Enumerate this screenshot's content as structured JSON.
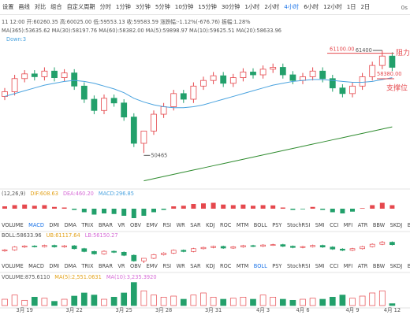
{
  "toolbar": {
    "items": [
      "设置",
      "画线",
      "对比",
      "组合",
      "自定义周期",
      "分时",
      "1分钟",
      "3分钟",
      "5分钟",
      "10分钟",
      "15分钟",
      "30分钟",
      "1小时",
      "2小时",
      "4小时",
      "6小时",
      "12小时",
      "1日",
      "2日"
    ],
    "active": "4小时",
    "right": "0s"
  },
  "info": {
    "ohlc": "11 12:00  开:60260.35  高:60025.00  低:59553.13  收:59583.59  涨跌幅:-1.12%(-676.76)  振幅:1.28%",
    "ma": "MA(365):53635.62  MA(30):58197.76  MA(60):58382.00  MA(5):59898.97  MA(10):59625.51  MA(20):58633.96",
    "down": "Down:3"
  },
  "chart_data": {
    "type": "candlestick",
    "categories": [
      null,
      null,
      "3月 19",
      null,
      null,
      null,
      null,
      "3月 22",
      null,
      null,
      null,
      null,
      "3月 25",
      null,
      null,
      null,
      "3月 28",
      null,
      null,
      null,
      null,
      "3月 31",
      null,
      null,
      null,
      null,
      "4月 3",
      null,
      null,
      null,
      "4月 6",
      null,
      null,
      null,
      null,
      "4月 9",
      null,
      null,
      null,
      "4月 12"
    ],
    "open": [
      56500,
      57000,
      58400,
      58900,
      58600,
      59200,
      58500,
      59000,
      57600,
      56200,
      55000,
      56300,
      55800,
      54300,
      51500,
      52800,
      54600,
      55400,
      56800,
      56200,
      57600,
      58200,
      58700,
      57900,
      58500,
      59100,
      58800,
      59400,
      59600,
      58800,
      58200,
      58600,
      59200,
      58400,
      57400,
      56800,
      57600,
      58600,
      59800,
      60800
    ],
    "high": [
      57400,
      58800,
      59300,
      59300,
      59600,
      59600,
      59400,
      59400,
      58000,
      56600,
      56700,
      56700,
      56200,
      54700,
      52800,
      55000,
      55800,
      57200,
      57200,
      58000,
      58600,
      59100,
      59100,
      58900,
      59500,
      59500,
      59800,
      60000,
      60000,
      59200,
      59000,
      59600,
      59600,
      58800,
      57800,
      58000,
      59000,
      60200,
      61400,
      61200
    ],
    "low": [
      56100,
      56600,
      58000,
      58200,
      58200,
      58100,
      58100,
      57200,
      55800,
      54600,
      54600,
      55400,
      53900,
      51100,
      50465,
      52400,
      54200,
      55000,
      55800,
      55800,
      57200,
      57800,
      57500,
      57500,
      58100,
      58400,
      58400,
      59000,
      58400,
      57800,
      57800,
      58200,
      58000,
      57000,
      56400,
      56400,
      57200,
      58200,
      59400,
      59200
    ],
    "close": [
      57000,
      58400,
      58900,
      58600,
      59200,
      58500,
      59000,
      57600,
      56200,
      55000,
      56300,
      55800,
      54300,
      51500,
      52800,
      54600,
      55400,
      56800,
      56200,
      57600,
      58200,
      58700,
      57900,
      58500,
      59100,
      58800,
      59400,
      59600,
      58800,
      58200,
      58600,
      59200,
      58400,
      57400,
      56800,
      57600,
      58600,
      59800,
      60800,
      59600
    ],
    "up_color": "#e5484d",
    "down_color": "#22a06b",
    "ylim": [
      47300,
      63000
    ],
    "lines": [
      {
        "name": "MA(20)",
        "color": "#4aa3df",
        "values": [
          56500,
          56800,
          57100,
          57400,
          57700,
          57900,
          58100,
          58200,
          58100,
          57900,
          57600,
          57300,
          56900,
          56300,
          55900,
          55600,
          55400,
          55300,
          55300,
          55400,
          55600,
          55900,
          56200,
          56500,
          56800,
          57100,
          57400,
          57700,
          57900,
          58100,
          58200,
          58300,
          58300,
          58200,
          58100,
          58000,
          58000,
          58100,
          58300,
          58500
        ]
      },
      {
        "name": "MA(365)",
        "color": "#2e8b2e",
        "values": [
          null,
          null,
          null,
          null,
          null,
          null,
          null,
          null,
          null,
          null,
          null,
          null,
          null,
          null,
          47500,
          47730,
          47960,
          48190,
          48420,
          48650,
          48880,
          49110,
          49340,
          49570,
          49800,
          50030,
          50260,
          50490,
          50720,
          50950,
          51180,
          51410,
          51640,
          51870,
          52100,
          52330,
          52560,
          52790,
          53020,
          53250
        ]
      }
    ],
    "annotations": {
      "resistance": {
        "value": 61100,
        "label": "61100.00"
      },
      "resistance_text": "阻力",
      "support": {
        "value": 58380,
        "label": "58380.00"
      },
      "support_text": "支撑位",
      "high": 61400,
      "low": 50465
    },
    "macd": {
      "legend": [
        "(12,26,9)",
        "DIF:608.63",
        "DEA:460.20",
        "MACD:296.85"
      ],
      "values": [
        200,
        300,
        350,
        250,
        300,
        150,
        100,
        -100,
        -300,
        -500,
        -400,
        -450,
        -600,
        -800,
        -600,
        -300,
        -100,
        200,
        250,
        400,
        450,
        500,
        350,
        300,
        350,
        250,
        300,
        280,
        100,
        -100,
        -50,
        150,
        -100,
        -300,
        -400,
        -250,
        50,
        300,
        500,
        297
      ],
      "ylim": [
        -1000,
        1000
      ]
    },
    "boll": {
      "legend": [
        "BOLL:58633.96",
        "UB:61117.64",
        "LB:56150.27"
      ]
    },
    "volume": {
      "legend": [
        "VOLUME:875.6110",
        "MA(5):2,551.0631",
        "MA(10):3,235.3920"
      ],
      "values": [
        3000,
        5000,
        2500,
        4000,
        3500,
        2000,
        3000,
        4500,
        6000,
        5000,
        3000,
        4000,
        6000,
        11000,
        7000,
        5000,
        4000,
        4500,
        3000,
        5000,
        6000,
        4000,
        3000,
        3500,
        4000,
        3000,
        5000,
        4000,
        3000,
        2500,
        3000,
        3500,
        3000,
        4000,
        5000,
        3500,
        4500,
        6000,
        7000,
        900
      ],
      "ylim": [
        0,
        12000
      ]
    },
    "tabs": {
      "items": [
        "VOLUME",
        "MACD",
        "DMI",
        "DMA",
        "TRIX",
        "BRAR",
        "VR",
        "OBV",
        "EMV",
        "RSI",
        "WR",
        "SAR",
        "KDJ",
        "ROC",
        "MTM",
        "BOLL",
        "PSY",
        "StochRSI",
        "SMI",
        "CCI",
        "MFI",
        "ATR",
        "BBW",
        "SKDJ",
        "BIAS",
        "DPO"
      ],
      "active_rows": [
        "MACD",
        "BOLL"
      ]
    }
  }
}
